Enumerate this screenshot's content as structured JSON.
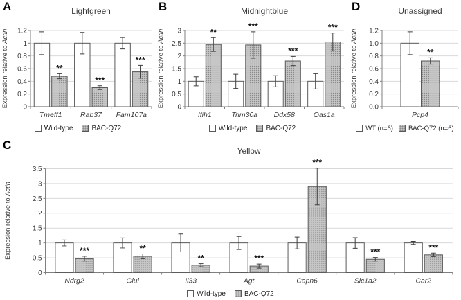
{
  "style": {
    "bar_border": "#595959",
    "bar_fill_wildtype": "#ffffff",
    "bar_fill_base": "#c6c6c6",
    "bar_dot": "#8b8b8b",
    "gridline": "#d9d9d9",
    "axis": "#7f7f7f",
    "error_bar": "#3f3f3f",
    "text": "#3a3a3a",
    "star": "#111111",
    "panel_label": "#000000"
  },
  "chart_data": [
    {
      "panel": "A",
      "type": "bar",
      "title": "Lightgreen",
      "ylabel_prefix": "Expression relative to ",
      "ylabel_italic": "Actin",
      "ylim": [
        0,
        1.2
      ],
      "ytick_labels": [
        "0",
        "0.2",
        "0.4",
        "0.6",
        "0.8",
        "1",
        "1.2"
      ],
      "categories": [
        "Tmeff1",
        "Rab37",
        "Fam107a"
      ],
      "series": [
        {
          "name": "Wild-type",
          "values": [
            1.0,
            1.0,
            1.0
          ],
          "errors": [
            0.18,
            0.17,
            0.09
          ]
        },
        {
          "name": "BAC-Q72",
          "values": [
            0.48,
            0.3,
            0.55
          ],
          "errors": [
            0.04,
            0.03,
            0.1
          ]
        }
      ],
      "significance": [
        "**",
        "***",
        "***"
      ],
      "legend_position": "bottom",
      "grid": true
    },
    {
      "panel": "B",
      "type": "bar",
      "title": "Midnightblue",
      "ylabel_prefix": "Expression relative to ",
      "ylabel_italic": "Actin",
      "ylim": [
        0,
        3
      ],
      "ytick_labels": [
        "0",
        "0.5",
        "1",
        "1.5",
        "2",
        "2.5",
        "3"
      ],
      "categories": [
        "Ifih1",
        "Trim30a",
        "Ddx58",
        "Oas1a"
      ],
      "series": [
        {
          "name": "Wild-type",
          "values": [
            1.0,
            1.0,
            1.0,
            1.0
          ],
          "errors": [
            0.18,
            0.28,
            0.22,
            0.3
          ]
        },
        {
          "name": "BAC-Q72",
          "values": [
            2.45,
            2.43,
            1.8,
            2.55
          ],
          "errors": [
            0.27,
            0.52,
            0.18,
            0.35
          ]
        }
      ],
      "significance": [
        "**",
        "***",
        "***",
        "***"
      ],
      "legend_position": "bottom",
      "grid": true
    },
    {
      "panel": "D",
      "type": "bar",
      "title": "Unassigned",
      "ylabel_prefix": "Expression relative to ",
      "ylabel_italic": "Actin",
      "ylim": [
        0,
        1.2
      ],
      "ytick_labels": [
        "0.0",
        "0.2",
        "0.4",
        "0.6",
        "0.8",
        "1.0",
        "1.2"
      ],
      "categories": [
        "Pcp4"
      ],
      "series": [
        {
          "name": "WT (n=6)",
          "values": [
            1.0
          ],
          "errors": [
            0.18
          ]
        },
        {
          "name": "BAC-Q72 (n=6)",
          "values": [
            0.72
          ],
          "errors": [
            0.05
          ]
        }
      ],
      "significance": [
        "**"
      ],
      "legend_position": "bottom",
      "grid": true
    },
    {
      "panel": "C",
      "type": "bar",
      "title": "Yellow",
      "ylabel_prefix": "Expression relative to ",
      "ylabel_italic": "Actin",
      "ylim": [
        0,
        3.5
      ],
      "ytick_labels": [
        "0",
        "0.5",
        "1",
        "1.5",
        "2",
        "2.5",
        "3",
        "3.5"
      ],
      "categories": [
        "Ndrg2",
        "Glul",
        "Il33",
        "Agt",
        "Capn6",
        "Slc1a2",
        "Car2"
      ],
      "series": [
        {
          "name": "Wild-type",
          "values": [
            1.0,
            1.0,
            1.0,
            1.0,
            1.0,
            1.0,
            1.0
          ],
          "errors": [
            0.1,
            0.17,
            0.3,
            0.22,
            0.2,
            0.18,
            0.05
          ]
        },
        {
          "name": "BAC-Q72",
          "values": [
            0.47,
            0.55,
            0.25,
            0.22,
            2.9,
            0.45,
            0.6
          ],
          "errors": [
            0.08,
            0.08,
            0.05,
            0.07,
            0.62,
            0.06,
            0.06
          ]
        }
      ],
      "significance": [
        "***",
        "**",
        "**",
        "***",
        "***",
        "***",
        "***"
      ],
      "legend_position": "bottom",
      "grid": true
    }
  ]
}
